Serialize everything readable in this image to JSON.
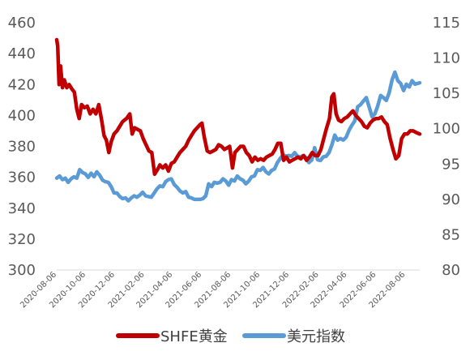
{
  "chart_data": {
    "type": "line",
    "title": "",
    "xlabel": "",
    "ylabel": "",
    "x_tick_labels": [
      "2020-08-06",
      "2020-10-06",
      "2020-12-06",
      "2021-02-06",
      "2021-04-06",
      "2021-06-06",
      "2021-08-06",
      "2021-10-06",
      "2021-12-06",
      "2022-02-06",
      "2022-04-06",
      "2022-06-06",
      "2022-08-06"
    ],
    "y_left": {
      "min": 300,
      "max": 460,
      "ticks": [
        300,
        320,
        340,
        360,
        380,
        400,
        420,
        440,
        460
      ]
    },
    "y_right": {
      "min": 80,
      "max": 115,
      "ticks": [
        80,
        85,
        90,
        95,
        100,
        105,
        110,
        115
      ]
    },
    "x_range": [
      "2020-08-06",
      "2022-09-05"
    ],
    "grid": false,
    "legend_position": "bottom",
    "series": [
      {
        "name": "SHFE黄金",
        "axis": "left",
        "color": "#C00000",
        "points": [
          [
            "2020-08-06",
            449
          ],
          [
            "2020-08-08",
            445
          ],
          [
            "2020-08-11",
            420
          ],
          [
            "2020-08-14",
            432
          ],
          [
            "2020-08-18",
            418
          ],
          [
            "2020-08-22",
            423
          ],
          [
            "2020-08-27",
            418
          ],
          [
            "2020-09-01",
            420
          ],
          [
            "2020-09-07",
            417
          ],
          [
            "2020-09-12",
            415
          ],
          [
            "2020-09-17",
            404
          ],
          [
            "2020-09-22",
            398
          ],
          [
            "2020-09-27",
            407
          ],
          [
            "2020-10-03",
            405
          ],
          [
            "2020-10-09",
            406
          ],
          [
            "2020-10-15",
            401
          ],
          [
            "2020-10-21",
            404
          ],
          [
            "2020-10-27",
            401
          ],
          [
            "2020-11-02",
            407
          ],
          [
            "2020-11-08",
            397
          ],
          [
            "2020-11-13",
            387
          ],
          [
            "2020-11-18",
            384
          ],
          [
            "2020-11-23",
            376
          ],
          [
            "2020-11-28",
            383
          ],
          [
            "2020-12-04",
            388
          ],
          [
            "2020-12-10",
            390
          ],
          [
            "2020-12-16",
            393
          ],
          [
            "2020-12-22",
            396
          ],
          [
            "2020-12-30",
            398
          ],
          [
            "2021-01-06",
            401
          ],
          [
            "2021-01-11",
            388
          ],
          [
            "2021-01-16",
            392
          ],
          [
            "2021-01-22",
            391
          ],
          [
            "2021-01-28",
            390
          ],
          [
            "2021-02-03",
            385
          ],
          [
            "2021-02-09",
            381
          ],
          [
            "2021-02-15",
            377
          ],
          [
            "2021-02-21",
            376
          ],
          [
            "2021-02-27",
            362
          ],
          [
            "2021-03-05",
            365
          ],
          [
            "2021-03-10",
            368
          ],
          [
            "2021-03-16",
            366
          ],
          [
            "2021-03-22",
            368
          ],
          [
            "2021-03-28",
            364
          ],
          [
            "2021-04-03",
            369
          ],
          [
            "2021-04-09",
            370
          ],
          [
            "2021-04-15",
            373
          ],
          [
            "2021-04-21",
            376
          ],
          [
            "2021-04-27",
            378
          ],
          [
            "2021-05-03",
            380
          ],
          [
            "2021-05-09",
            384
          ],
          [
            "2021-05-15",
            387
          ],
          [
            "2021-05-21",
            390
          ],
          [
            "2021-05-27",
            392
          ],
          [
            "2021-06-02",
            394
          ],
          [
            "2021-06-06",
            395
          ],
          [
            "2021-06-11",
            386
          ],
          [
            "2021-06-17",
            377
          ],
          [
            "2021-06-23",
            376
          ],
          [
            "2021-06-29",
            377
          ],
          [
            "2021-07-05",
            378
          ],
          [
            "2021-07-11",
            381
          ],
          [
            "2021-07-17",
            380
          ],
          [
            "2021-07-23",
            378
          ],
          [
            "2021-07-29",
            379
          ],
          [
            "2021-08-03",
            380
          ],
          [
            "2021-08-09",
            366
          ],
          [
            "2021-08-14",
            376
          ],
          [
            "2021-08-20",
            378
          ],
          [
            "2021-08-26",
            380
          ],
          [
            "2021-09-01",
            380
          ],
          [
            "2021-09-07",
            376
          ],
          [
            "2021-09-13",
            374
          ],
          [
            "2021-09-19",
            370
          ],
          [
            "2021-09-25",
            373
          ],
          [
            "2021-10-01",
            371
          ],
          [
            "2021-10-07",
            372
          ],
          [
            "2021-10-13",
            371
          ],
          [
            "2021-10-19",
            373
          ],
          [
            "2021-10-25",
            374
          ],
          [
            "2021-10-31",
            375
          ],
          [
            "2021-11-06",
            378
          ],
          [
            "2021-11-12",
            382
          ],
          [
            "2021-11-18",
            382
          ],
          [
            "2021-11-24",
            371
          ],
          [
            "2021-11-30",
            373
          ],
          [
            "2021-12-06",
            370
          ],
          [
            "2021-12-12",
            371
          ],
          [
            "2021-12-18",
            372
          ],
          [
            "2021-12-24",
            373
          ],
          [
            "2021-12-30",
            372
          ],
          [
            "2022-01-05",
            374
          ],
          [
            "2022-01-11",
            371
          ],
          [
            "2022-01-17",
            373
          ],
          [
            "2022-01-23",
            376
          ],
          [
            "2022-01-29",
            374
          ],
          [
            "2022-02-04",
            374
          ],
          [
            "2022-02-10",
            378
          ],
          [
            "2022-02-16",
            385
          ],
          [
            "2022-02-22",
            392
          ],
          [
            "2022-02-28",
            398
          ],
          [
            "2022-03-05",
            412
          ],
          [
            "2022-03-09",
            414
          ],
          [
            "2022-03-14",
            401
          ],
          [
            "2022-03-19",
            397
          ],
          [
            "2022-03-25",
            396
          ],
          [
            "2022-03-31",
            398
          ],
          [
            "2022-04-06",
            399
          ],
          [
            "2022-04-12",
            401
          ],
          [
            "2022-04-18",
            403
          ],
          [
            "2022-04-24",
            400
          ],
          [
            "2022-04-30",
            398
          ],
          [
            "2022-05-06",
            396
          ],
          [
            "2022-05-12",
            393
          ],
          [
            "2022-05-18",
            392
          ],
          [
            "2022-05-24",
            395
          ],
          [
            "2022-05-30",
            397
          ],
          [
            "2022-06-05",
            398
          ],
          [
            "2022-06-11",
            398
          ],
          [
            "2022-06-17",
            399
          ],
          [
            "2022-06-23",
            396
          ],
          [
            "2022-06-29",
            394
          ],
          [
            "2022-07-05",
            385
          ],
          [
            "2022-07-11",
            378
          ],
          [
            "2022-07-17",
            372
          ],
          [
            "2022-07-23",
            374
          ],
          [
            "2022-07-29",
            385
          ],
          [
            "2022-08-04",
            388
          ],
          [
            "2022-08-10",
            388
          ],
          [
            "2022-08-16",
            390
          ],
          [
            "2022-08-22",
            390
          ],
          [
            "2022-08-28",
            389
          ],
          [
            "2022-09-05",
            388
          ]
        ]
      },
      {
        "name": "美元指数",
        "axis": "right",
        "color": "#5B9BD5",
        "points": [
          [
            "2020-08-06",
            93.0
          ],
          [
            "2020-08-12",
            93.3
          ],
          [
            "2020-08-18",
            92.8
          ],
          [
            "2020-08-24",
            93.0
          ],
          [
            "2020-08-30",
            92.4
          ],
          [
            "2020-09-05",
            92.9
          ],
          [
            "2020-09-11",
            93.2
          ],
          [
            "2020-09-17",
            93.0
          ],
          [
            "2020-09-23",
            94.2
          ],
          [
            "2020-09-29",
            93.8
          ],
          [
            "2020-10-05",
            93.6
          ],
          [
            "2020-10-11",
            93.1
          ],
          [
            "2020-10-17",
            93.7
          ],
          [
            "2020-10-23",
            93.2
          ],
          [
            "2020-10-29",
            93.9
          ],
          [
            "2020-11-04",
            93.4
          ],
          [
            "2020-11-10",
            92.7
          ],
          [
            "2020-11-16",
            92.5
          ],
          [
            "2020-11-22",
            92.4
          ],
          [
            "2020-11-28",
            91.8
          ],
          [
            "2020-12-04",
            90.9
          ],
          [
            "2020-12-10",
            90.9
          ],
          [
            "2020-12-16",
            90.4
          ],
          [
            "2020-12-22",
            90.1
          ],
          [
            "2020-12-28",
            90.2
          ],
          [
            "2021-01-03",
            89.8
          ],
          [
            "2021-01-09",
            90.2
          ],
          [
            "2021-01-15",
            90.5
          ],
          [
            "2021-01-21",
            90.3
          ],
          [
            "2021-01-27",
            90.6
          ],
          [
            "2021-02-02",
            91.0
          ],
          [
            "2021-02-08",
            90.5
          ],
          [
            "2021-02-14",
            90.4
          ],
          [
            "2021-02-20",
            90.3
          ],
          [
            "2021-02-26",
            90.9
          ],
          [
            "2021-03-04",
            91.5
          ],
          [
            "2021-03-10",
            91.9
          ],
          [
            "2021-03-16",
            91.8
          ],
          [
            "2021-03-22",
            92.5
          ],
          [
            "2021-03-28",
            92.8
          ],
          [
            "2021-04-03",
            92.9
          ],
          [
            "2021-04-09",
            92.1
          ],
          [
            "2021-04-15",
            91.7
          ],
          [
            "2021-04-21",
            91.2
          ],
          [
            "2021-04-27",
            90.9
          ],
          [
            "2021-05-03",
            91.1
          ],
          [
            "2021-05-09",
            90.3
          ],
          [
            "2021-05-15",
            90.2
          ],
          [
            "2021-05-21",
            90.0
          ],
          [
            "2021-05-27",
            90.0
          ],
          [
            "2021-06-02",
            90.0
          ],
          [
            "2021-06-08",
            90.1
          ],
          [
            "2021-06-14",
            90.5
          ],
          [
            "2021-06-20",
            92.2
          ],
          [
            "2021-06-26",
            91.8
          ],
          [
            "2021-07-02",
            92.4
          ],
          [
            "2021-07-08",
            92.3
          ],
          [
            "2021-07-14",
            92.4
          ],
          [
            "2021-07-20",
            92.9
          ],
          [
            "2021-07-26",
            92.6
          ],
          [
            "2021-08-01",
            92.0
          ],
          [
            "2021-08-07",
            92.8
          ],
          [
            "2021-08-13",
            92.6
          ],
          [
            "2021-08-19",
            93.3
          ],
          [
            "2021-08-25",
            92.9
          ],
          [
            "2021-08-31",
            92.7
          ],
          [
            "2021-09-06",
            92.2
          ],
          [
            "2021-09-12",
            92.6
          ],
          [
            "2021-09-18",
            93.2
          ],
          [
            "2021-09-24",
            93.3
          ],
          [
            "2021-09-30",
            94.2
          ],
          [
            "2021-10-06",
            94.1
          ],
          [
            "2021-10-12",
            94.5
          ],
          [
            "2021-10-18",
            93.9
          ],
          [
            "2021-10-24",
            93.6
          ],
          [
            "2021-10-30",
            94.1
          ],
          [
            "2021-11-05",
            94.3
          ],
          [
            "2021-11-11",
            95.2
          ],
          [
            "2021-11-17",
            95.8
          ],
          [
            "2021-11-23",
            96.3
          ],
          [
            "2021-11-29",
            96.1
          ],
          [
            "2021-12-05",
            96.2
          ],
          [
            "2021-12-11",
            96.1
          ],
          [
            "2021-12-17",
            96.6
          ],
          [
            "2021-12-23",
            96.1
          ],
          [
            "2021-12-29",
            96.0
          ],
          [
            "2022-01-04",
            96.2
          ],
          [
            "2022-01-10",
            95.9
          ],
          [
            "2022-01-16",
            95.2
          ],
          [
            "2022-01-22",
            95.6
          ],
          [
            "2022-01-28",
            97.3
          ],
          [
            "2022-02-03",
            95.6
          ],
          [
            "2022-02-09",
            95.5
          ],
          [
            "2022-02-15",
            96.0
          ],
          [
            "2022-02-21",
            96.1
          ],
          [
            "2022-02-27",
            96.6
          ],
          [
            "2022-03-05",
            97.7
          ],
          [
            "2022-03-11",
            99.1
          ],
          [
            "2022-03-17",
            98.4
          ],
          [
            "2022-03-23",
            98.6
          ],
          [
            "2022-03-29",
            98.4
          ],
          [
            "2022-04-04",
            98.8
          ],
          [
            "2022-04-10",
            99.8
          ],
          [
            "2022-04-16",
            100.5
          ],
          [
            "2022-04-22",
            101.1
          ],
          [
            "2022-04-28",
            103.1
          ],
          [
            "2022-05-04",
            103.4
          ],
          [
            "2022-05-10",
            103.9
          ],
          [
            "2022-05-16",
            104.4
          ],
          [
            "2022-05-22",
            103.1
          ],
          [
            "2022-05-28",
            101.7
          ],
          [
            "2022-06-03",
            102.1
          ],
          [
            "2022-06-09",
            103.2
          ],
          [
            "2022-06-15",
            104.7
          ],
          [
            "2022-06-21",
            104.4
          ],
          [
            "2022-06-27",
            104.0
          ],
          [
            "2022-07-03",
            105.1
          ],
          [
            "2022-07-09",
            106.9
          ],
          [
            "2022-07-15",
            108.0
          ],
          [
            "2022-07-21",
            106.8
          ],
          [
            "2022-07-27",
            106.4
          ],
          [
            "2022-08-02",
            105.4
          ],
          [
            "2022-08-08",
            106.3
          ],
          [
            "2022-08-14",
            105.9
          ],
          [
            "2022-08-20",
            106.8
          ],
          [
            "2022-08-26",
            106.3
          ],
          [
            "2022-09-05",
            106.5
          ]
        ]
      }
    ]
  }
}
